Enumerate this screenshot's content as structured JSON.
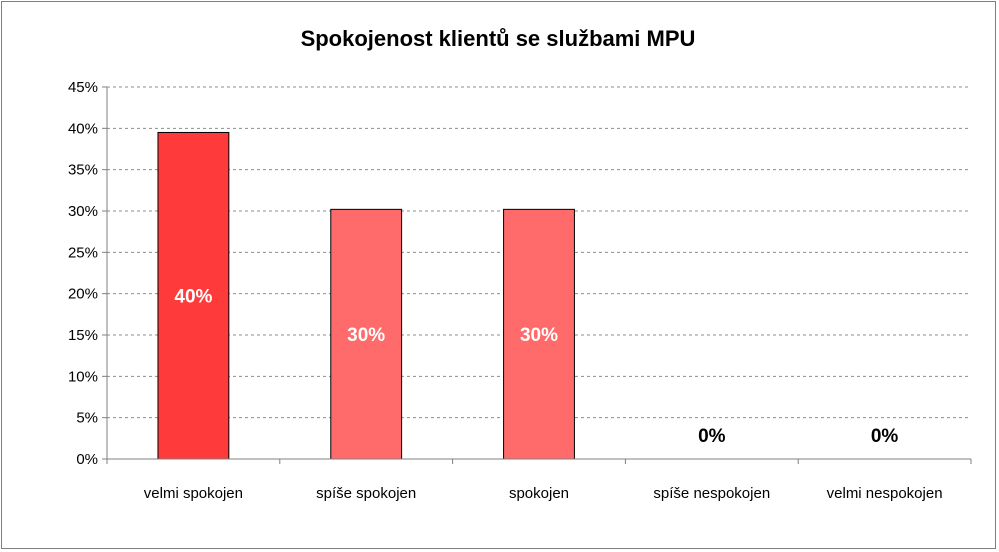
{
  "chart_data": {
    "type": "bar",
    "title": "Spokojenost klientů se službami MPU",
    "categories": [
      "velmi spokojen",
      "spíše spokojen",
      "spokojen",
      "spíše nespokojen",
      "velmi nespokojen"
    ],
    "values": [
      39.5,
      30.2,
      30.2,
      0,
      0
    ],
    "data_labels": [
      "40%",
      "30%",
      "30%",
      "0%",
      "0%"
    ],
    "ylim": [
      0,
      45
    ],
    "yticks": [
      0,
      5,
      10,
      15,
      20,
      25,
      30,
      35,
      40,
      45
    ],
    "ytick_labels": [
      "0%",
      "5%",
      "10%",
      "15%",
      "20%",
      "25%",
      "30%",
      "35%",
      "40%",
      "45%"
    ],
    "grid": true,
    "legend": "none",
    "colors": {
      "bars": [
        "#ff3a3a",
        "#ff6b6b",
        "#ff6b6b",
        "#ff6b6b",
        "#ff6b6b"
      ],
      "label_on_bar": "#ffffff",
      "label_off_bar": "#000000"
    }
  }
}
